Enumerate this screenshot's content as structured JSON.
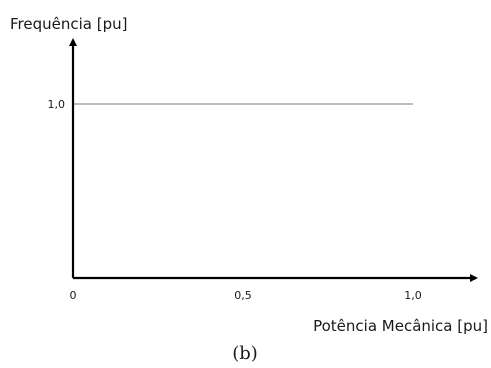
{
  "chart_data": {
    "type": "line",
    "xlabel": "Potência Mecânica [pu]",
    "ylabel": "Frequência [pu]",
    "panel_label": "(b)",
    "xlim": [
      0,
      1.18
    ],
    "ylim": [
      0,
      1.55
    ],
    "x_ticks": [
      {
        "value": 0,
        "label": "0"
      },
      {
        "value": 0.5,
        "label": "0,5"
      },
      {
        "value": 1.0,
        "label": "1,0"
      }
    ],
    "y_ticks": [
      {
        "value": 1.0,
        "label": "1,0"
      }
    ],
    "grid": false,
    "series": [
      {
        "x": [
          0,
          1.0
        ],
        "y": [
          1.0,
          1.0
        ],
        "color": "#a6a6a6"
      }
    ],
    "axis_color": "#000000"
  }
}
